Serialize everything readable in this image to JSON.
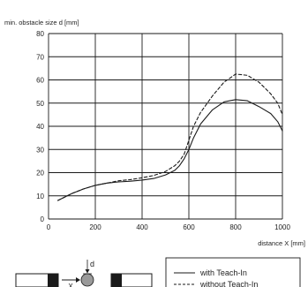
{
  "chart_data": {
    "type": "line",
    "title": "",
    "ylabel": "min. obstacle size d [mm]",
    "xlabel": "distance X [mm]",
    "xlim": [
      0,
      1000
    ],
    "ylim": [
      0,
      80
    ],
    "xticks": [
      "0",
      "200",
      "400",
      "600",
      "800",
      "1000"
    ],
    "yticks": [
      "0",
      "10",
      "20",
      "30",
      "40",
      "50",
      "60",
      "70",
      "80"
    ],
    "grid": true,
    "legend_position": "bottom-right",
    "series": [
      {
        "name": "with Teach-In",
        "style": "solid",
        "x": [
          40,
          100,
          150,
          200,
          250,
          300,
          350,
          400,
          450,
          500,
          540,
          560,
          580,
          600,
          620,
          650,
          700,
          750,
          800,
          850,
          900,
          950,
          980,
          1000
        ],
        "y": [
          8,
          11,
          13,
          14.5,
          15.5,
          16,
          16.3,
          16.8,
          17.5,
          19,
          21,
          23,
          26,
          30,
          35,
          41,
          47,
          50.5,
          51.5,
          51,
          48.5,
          45.5,
          42,
          38
        ]
      },
      {
        "name": "without Teach-In",
        "style": "dashed",
        "x": [
          40,
          100,
          150,
          200,
          250,
          300,
          350,
          400,
          450,
          500,
          540,
          560,
          580,
          600,
          620,
          650,
          700,
          750,
          800,
          850,
          900,
          950,
          980,
          1000
        ],
        "y": [
          8,
          11,
          13,
          14.5,
          15.5,
          16.5,
          17,
          17.8,
          18.8,
          20.5,
          23,
          25,
          28,
          34,
          40,
          46,
          53,
          59,
          62.5,
          62,
          59,
          54,
          50,
          45
        ]
      }
    ]
  },
  "diagram": {
    "d_label": "d",
    "x_label": "X"
  }
}
